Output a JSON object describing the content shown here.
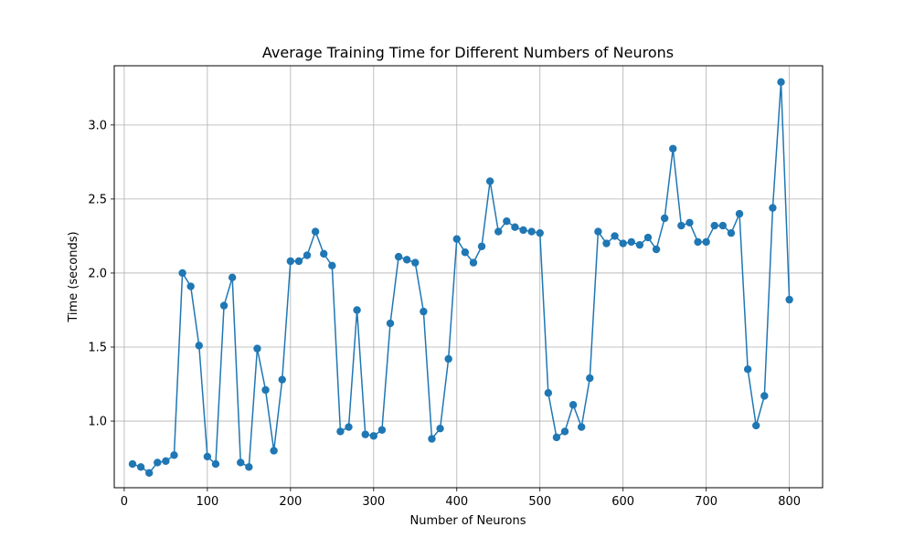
{
  "chart_data": {
    "type": "line",
    "title": "Average Training Time for Different Numbers of Neurons",
    "xlabel": "Number of Neurons",
    "ylabel": "Time (seconds)",
    "xlim": [
      -12,
      840
    ],
    "ylim": [
      0.55,
      3.4
    ],
    "xticks": [
      0,
      100,
      200,
      300,
      400,
      500,
      600,
      700,
      800
    ],
    "yticks": [
      1.0,
      1.5,
      2.0,
      2.5,
      3.0
    ],
    "grid": true,
    "series": [
      {
        "color": "#1f77b4",
        "marker": "circle",
        "x": [
          10,
          20,
          30,
          40,
          50,
          60,
          70,
          80,
          90,
          100,
          110,
          120,
          130,
          140,
          150,
          160,
          170,
          180,
          190,
          200,
          210,
          220,
          230,
          240,
          250,
          260,
          270,
          280,
          290,
          300,
          310,
          320,
          330,
          340,
          350,
          360,
          370,
          380,
          390,
          400,
          410,
          420,
          430,
          440,
          450,
          460,
          470,
          480,
          490,
          500,
          510,
          520,
          530,
          540,
          550,
          560,
          570,
          580,
          590,
          600,
          610,
          620,
          630,
          640,
          650,
          660,
          670,
          680,
          690,
          700,
          710,
          720,
          730,
          740,
          750,
          760,
          770,
          780,
          790,
          800
        ],
        "y": [
          0.71,
          0.69,
          0.65,
          0.72,
          0.73,
          0.77,
          2.0,
          1.91,
          1.51,
          0.76,
          0.71,
          1.78,
          1.97,
          0.72,
          0.69,
          1.49,
          1.21,
          0.8,
          1.28,
          2.08,
          2.08,
          2.12,
          2.28,
          2.13,
          2.05,
          0.93,
          0.96,
          1.75,
          0.91,
          0.9,
          0.94,
          1.66,
          2.11,
          2.09,
          2.07,
          1.74,
          0.88,
          0.95,
          1.42,
          2.23,
          2.14,
          2.07,
          2.18,
          2.62,
          2.28,
          2.35,
          2.31,
          2.29,
          2.28,
          2.27,
          1.19,
          0.89,
          0.93,
          1.11,
          0.96,
          1.29,
          2.28,
          2.2,
          2.25,
          2.2,
          2.21,
          2.19,
          2.24,
          2.16,
          2.37,
          2.84,
          2.32,
          2.34,
          2.21,
          2.21,
          2.32,
          2.32,
          2.27,
          2.4,
          1.35,
          0.97,
          1.17,
          2.44,
          3.29,
          1.82
        ]
      }
    ]
  }
}
